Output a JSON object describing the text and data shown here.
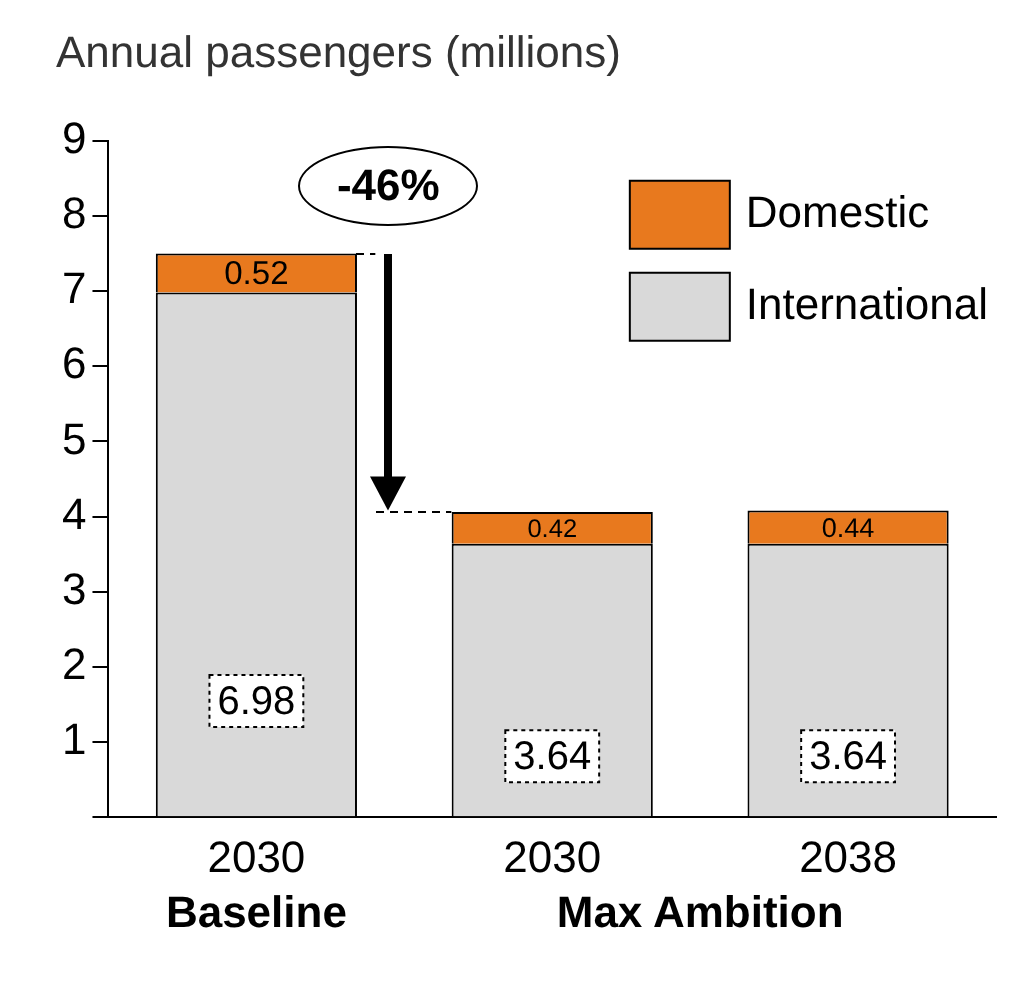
{
  "chart_data": {
    "type": "bar",
    "title": "Annual passengers (millions)",
    "categories": [
      "2030",
      "2030",
      "2038"
    ],
    "stacked": true,
    "series": [
      {
        "name": "International",
        "color": "#d9d9d9",
        "values": [
          6.98,
          3.64,
          3.64
        ]
      },
      {
        "name": "Domestic",
        "color": "#e8791e",
        "values": [
          0.52,
          0.42,
          0.44
        ]
      }
    ],
    "ylim": [
      0,
      9
    ],
    "yticks": [
      {
        "value": 0,
        "label": null
      },
      1,
      2,
      3,
      4,
      5,
      6,
      7,
      8,
      9
    ],
    "grid": false,
    "legend": "top right",
    "data_labels": true,
    "annotations": [
      "-46%",
      "Baseline",
      "Max Ambition"
    ]
  }
}
